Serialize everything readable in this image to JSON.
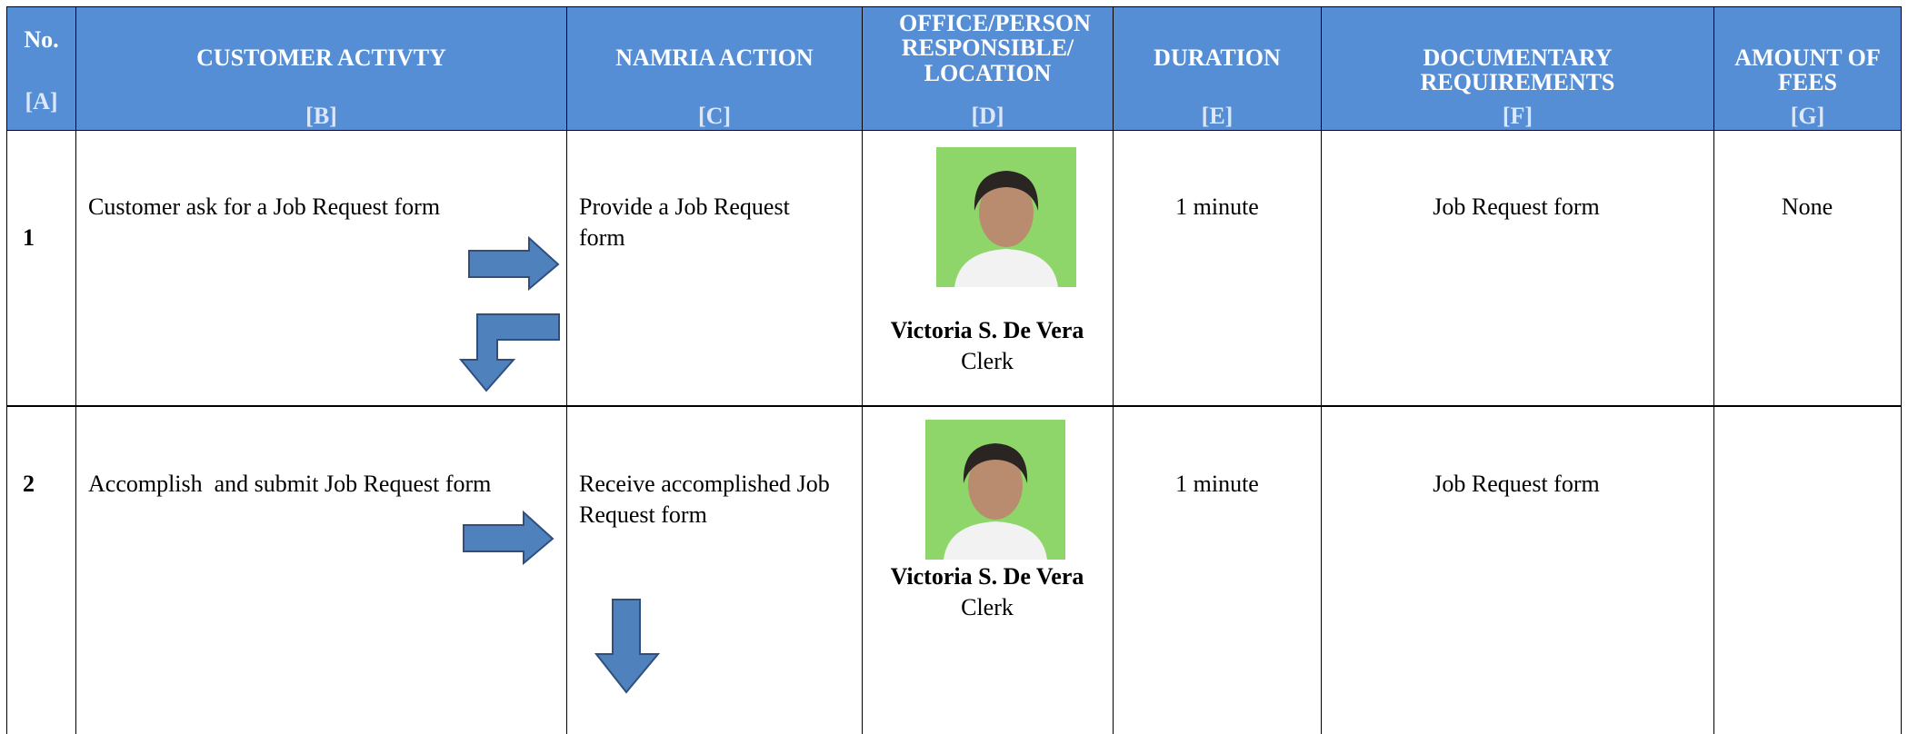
{
  "header": {
    "columns": [
      {
        "title": "No.",
        "code": "[A]"
      },
      {
        "title": "CUSTOMER ACTIVTY",
        "code": "[B]"
      },
      {
        "title": "NAMRIA ACTION",
        "code": "[C]"
      },
      {
        "title": "OFFICE/PERSON RESPONSIBLE/ LOCATION",
        "code": "[D]"
      },
      {
        "title": "DURATION",
        "code": "[E]"
      },
      {
        "title": "DOCUMENTARY REQUIREMENTS",
        "code": "[F]"
      },
      {
        "title": "AMOUNT OF FEES",
        "code": "[G]"
      }
    ]
  },
  "table": {
    "rows": [
      {
        "no": "1",
        "activity": "Customer ask for a Job Request form",
        "action": "Provide a Job Request form",
        "person": "Victoria S. De Vera",
        "role": "Clerk",
        "duration": "1 minute",
        "requirements": "Job Request form",
        "fees": "None"
      },
      {
        "no": "2",
        "activity": "Accomplish  and submit Job Request form",
        "action": "Receive accomplished Job Request form",
        "person": "Victoria S. De Vera",
        "role": "Clerk",
        "duration": "1 minute",
        "requirements": "Job Request form"
      }
    ]
  }
}
